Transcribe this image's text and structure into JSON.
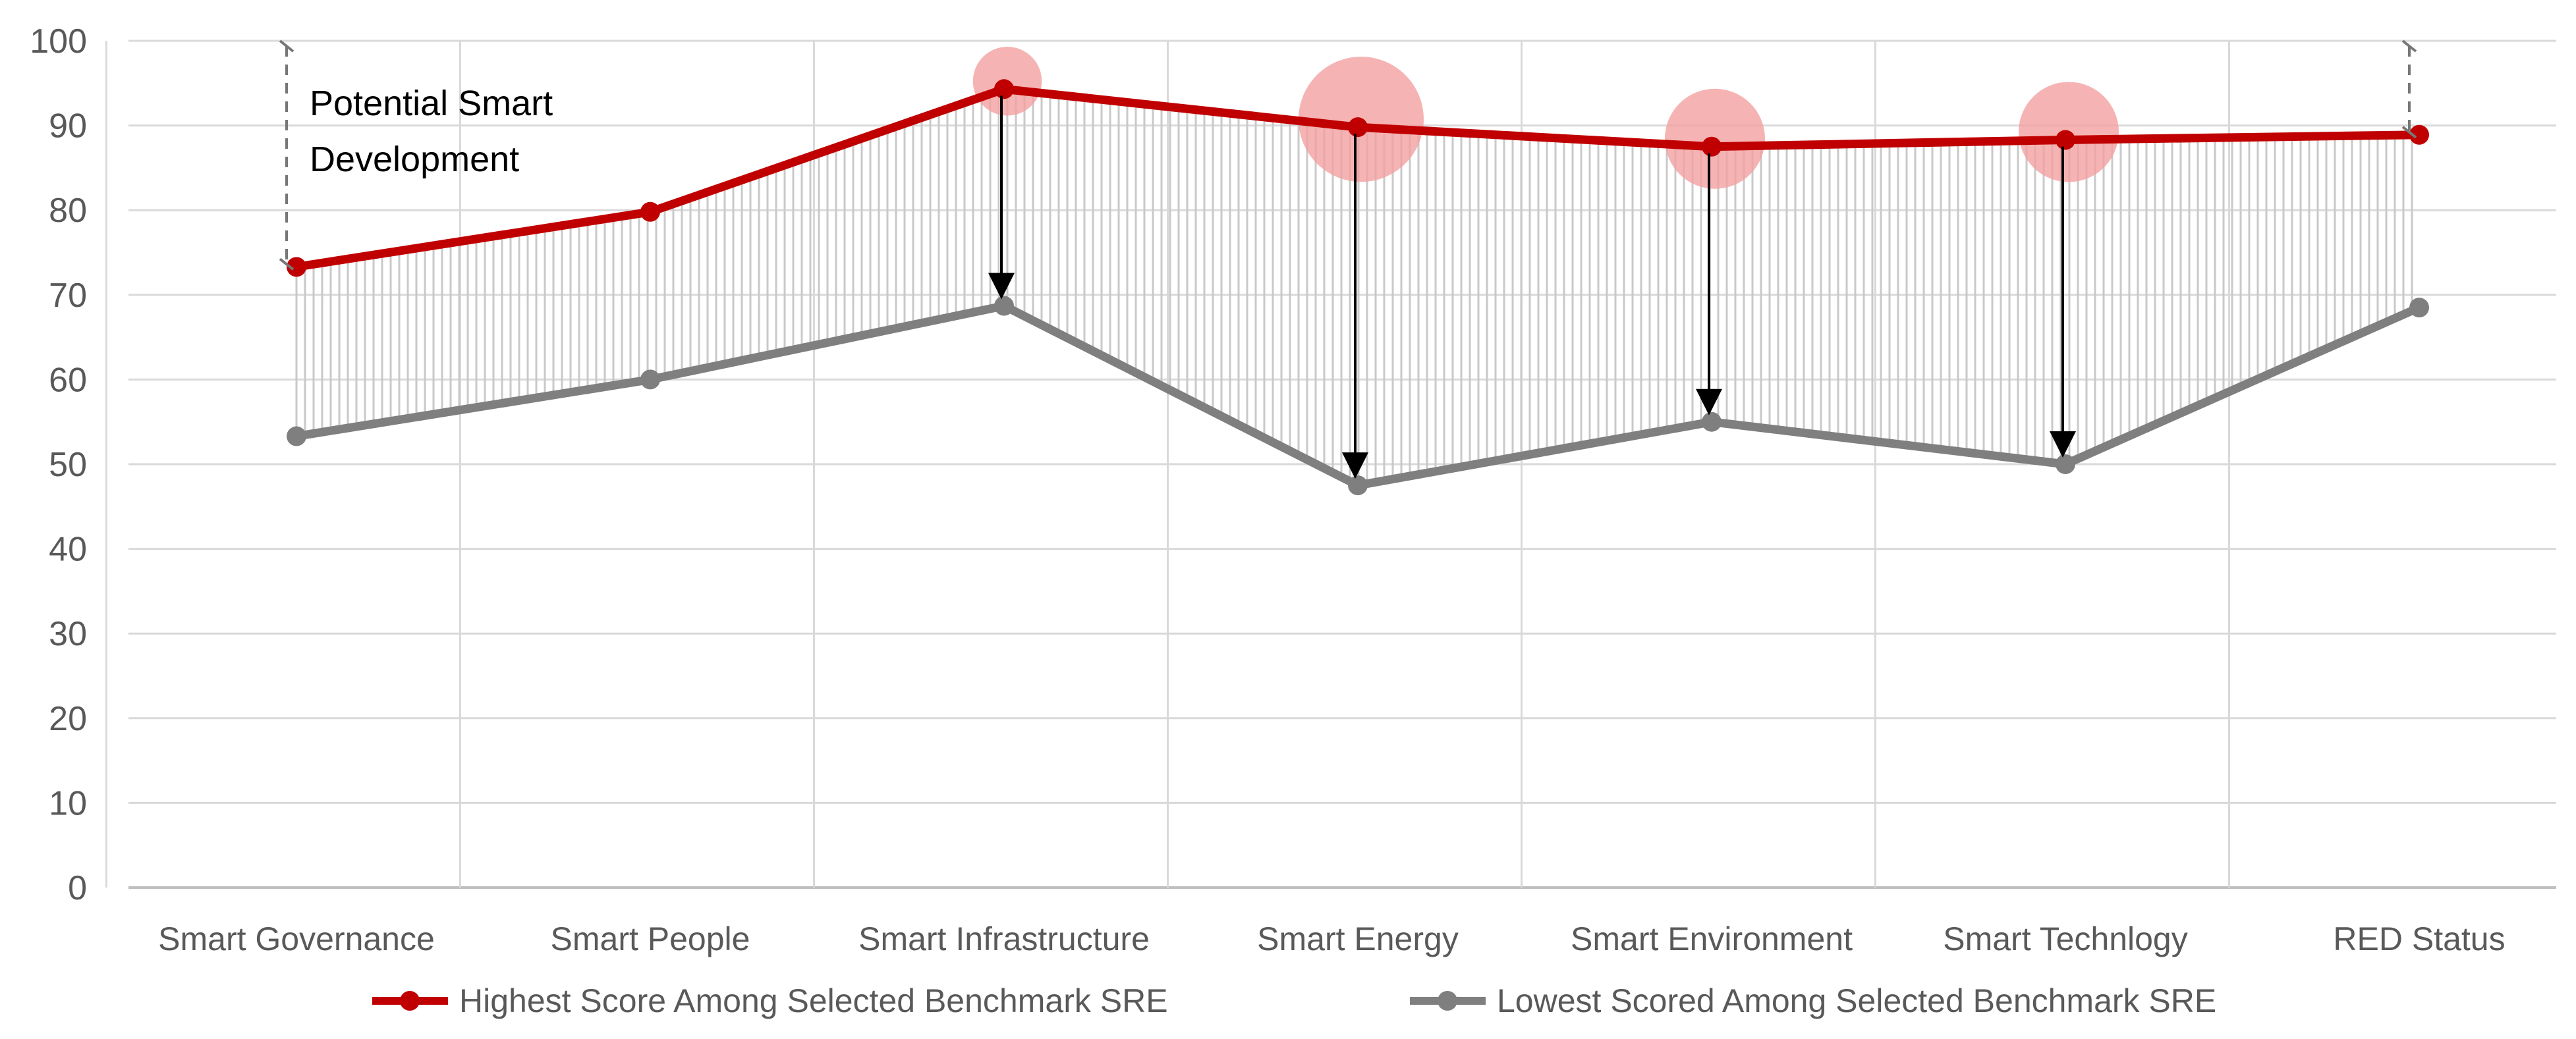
{
  "chart_data": {
    "type": "line",
    "title": "",
    "xlabel": "",
    "ylabel": "",
    "ylim": [
      0,
      100
    ],
    "yticks": [
      0,
      10,
      20,
      30,
      40,
      50,
      60,
      70,
      80,
      90,
      100
    ],
    "grid": true,
    "categories": [
      "Smart Governance",
      "Smart People",
      "Smart Infrastructure",
      "Smart Energy",
      "Smart Environment",
      "Smart Technlogy",
      "RED Status"
    ],
    "series": [
      {
        "name": "Highest Score Among Selected Benchmark SRE",
        "color": "#c00000",
        "values": [
          73.3,
          79.8,
          94.3,
          89.8,
          87.5,
          88.3,
          88.9
        ]
      },
      {
        "name": "Lowest Scored Among Selected Benchmark SRE",
        "color": "#7f7f7f",
        "values": [
          53.3,
          60.0,
          68.7,
          47.5,
          55.0,
          50.0,
          68.5
        ]
      }
    ],
    "highlights": [
      {
        "category": "Smart Infrastructure",
        "relative_size": 0.55
      },
      {
        "category": "Smart Energy",
        "relative_size": 1.0
      },
      {
        "category": "Smart Environment",
        "relative_size": 0.8
      },
      {
        "category": "Smart Technlogy",
        "relative_size": 0.8
      }
    ],
    "highlight_color": "#f4a0a0",
    "gap_arrows": [
      "Smart Infrastructure",
      "Smart Energy",
      "Smart Environment",
      "Smart Technlogy"
    ],
    "range_bracket_categories": [
      "Smart Governance",
      "RED Status"
    ],
    "annotation": {
      "lines": [
        "Potential Smart",
        "Development"
      ]
    },
    "legend_position": "bottom"
  }
}
